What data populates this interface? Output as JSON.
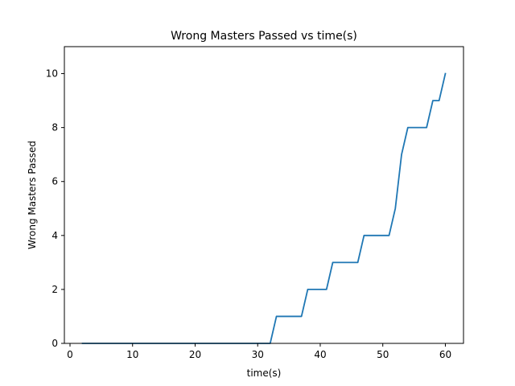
{
  "chart_data": {
    "type": "line",
    "title": "Wrong Masters Passed vs time(s)",
    "xlabel": "time(s)",
    "ylabel": "Wrong Masters Passed",
    "xlim": [
      -0.9,
      62.9
    ],
    "ylim": [
      0,
      11
    ],
    "xticks": [
      0,
      10,
      20,
      30,
      40,
      50,
      60
    ],
    "yticks": [
      0,
      2,
      4,
      6,
      8,
      10
    ],
    "grid": false,
    "line_color": "#1f77b4",
    "series": [
      {
        "x": [
          2,
          32,
          33,
          37,
          38,
          41,
          42,
          46,
          47,
          51,
          52,
          53,
          54,
          57,
          58,
          59,
          60
        ],
        "values": [
          0,
          0,
          1,
          1,
          2,
          2,
          3,
          3,
          4,
          4,
          5,
          7,
          8,
          8,
          9,
          9,
          10
        ]
      }
    ]
  }
}
